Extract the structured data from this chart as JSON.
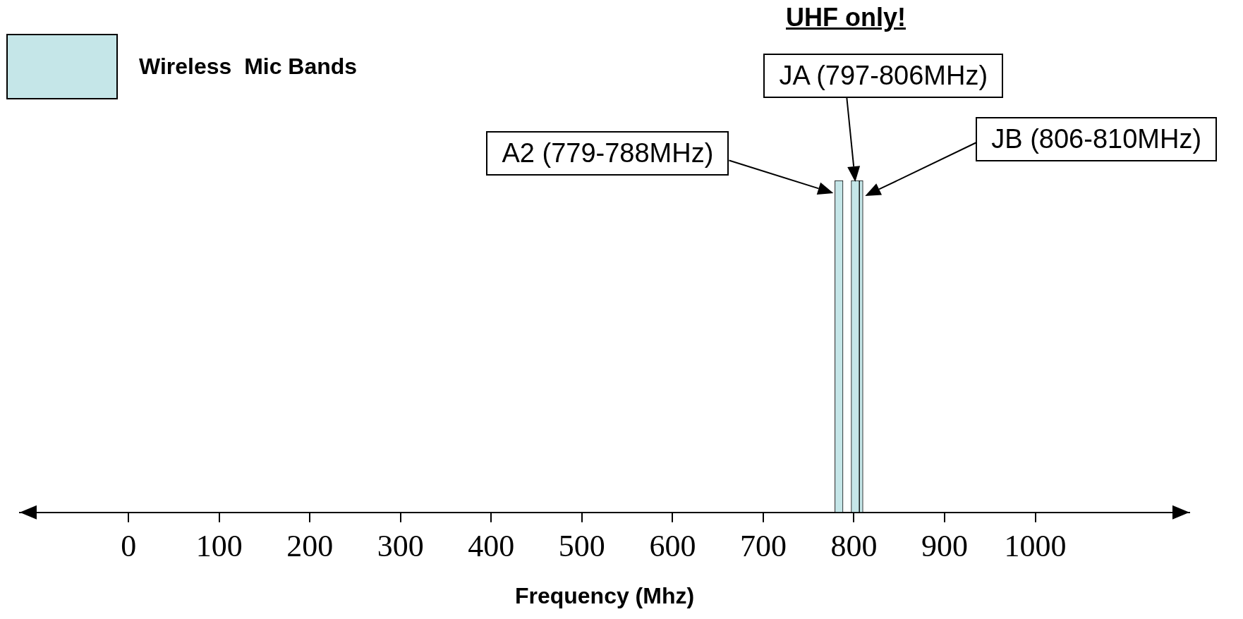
{
  "chart_data": {
    "type": "bar",
    "orientation": "horizontal",
    "categories": [
      null
    ],
    "xlabel": "Frequency (Mhz)",
    "legend": "top left",
    "tick_labels": "x",
    "series": [
      {
        "name": "Wireless  Mic Bands",
        "color": "#c5e6e8",
        "base": [
          779
        ],
        "values": [
          9
        ]
      },
      {
        "color": "#c5e6e8",
        "base": [
          797
        ],
        "values": [
          9
        ]
      },
      {
        "color": "#c5e6e8",
        "base": [
          806
        ],
        "values": [
          4
        ]
      }
    ],
    "annotations": [
      "UHF only!",
      "A2 (779-788MHz)",
      "JA (797-806MHz)",
      "JB (806-810MHz)"
    ],
    "xlim": [
      -120,
      1170
    ],
    "xticks": [
      0,
      100,
      200,
      300,
      400,
      500,
      600,
      700,
      800,
      900,
      1000
    ]
  }
}
